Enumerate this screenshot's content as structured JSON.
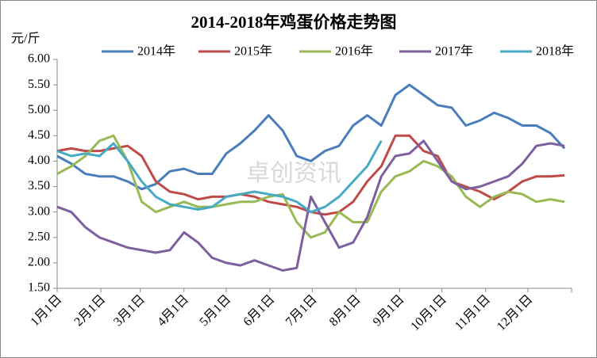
{
  "chart_data": {
    "type": "line",
    "title": "2014-2018年鸡蛋价格走势图",
    "y_label": "元/斤",
    "watermark": "卓创资讯",
    "x": [
      1,
      11,
      21,
      31,
      41,
      51,
      61,
      71,
      81,
      91,
      101,
      111,
      121,
      131,
      141,
      151,
      161,
      171,
      181,
      191,
      201,
      211,
      221,
      231,
      241,
      251,
      261,
      271,
      281,
      291,
      301,
      311,
      321,
      331,
      341,
      351,
      361
    ],
    "xlim": [
      1,
      366
    ],
    "xticks": [
      {
        "value": 1,
        "label": "1月1日"
      },
      {
        "value": 32,
        "label": "2月1日"
      },
      {
        "value": 60,
        "label": "3月1日"
      },
      {
        "value": 91,
        "label": "4月1日"
      },
      {
        "value": 121,
        "label": "5月1日"
      },
      {
        "value": 152,
        "label": "6月1日"
      },
      {
        "value": 182,
        "label": "7月1日"
      },
      {
        "value": 213,
        "label": "8月1日"
      },
      {
        "value": 244,
        "label": "9月1日"
      },
      {
        "value": 274,
        "label": "10月1日"
      },
      {
        "value": 305,
        "label": "11月1日"
      },
      {
        "value": 335,
        "label": "12月1日"
      }
    ],
    "ylim": [
      1.5,
      6.0
    ],
    "yticks": [
      {
        "value": 1.5,
        "label": "1.50"
      },
      {
        "value": 2.0,
        "label": "2.00"
      },
      {
        "value": 2.5,
        "label": "2.50"
      },
      {
        "value": 3.0,
        "label": "3.00"
      },
      {
        "value": 3.5,
        "label": "3.50"
      },
      {
        "value": 4.0,
        "label": "4.00"
      },
      {
        "value": 4.5,
        "label": "4.50"
      },
      {
        "value": 5.0,
        "label": "5.00"
      },
      {
        "value": 5.5,
        "label": "5.50"
      },
      {
        "value": 6.0,
        "label": "6.00"
      }
    ],
    "legend": "top",
    "series": [
      {
        "name": "2014年",
        "color": "#4a7ebb",
        "values": [
          4.1,
          3.95,
          3.75,
          3.7,
          3.7,
          3.6,
          3.45,
          3.55,
          3.8,
          3.85,
          3.75,
          3.75,
          4.15,
          4.35,
          4.6,
          4.9,
          4.6,
          4.1,
          4.0,
          4.2,
          4.3,
          4.7,
          4.9,
          4.7,
          5.3,
          5.5,
          5.3,
          5.1,
          5.05,
          4.7,
          4.8,
          4.95,
          4.85,
          4.7,
          4.7,
          4.55,
          4.25
        ]
      },
      {
        "name": "2015年",
        "color": "#be4b48",
        "values": [
          4.2,
          4.25,
          4.2,
          4.2,
          4.25,
          4.3,
          4.1,
          3.6,
          3.4,
          3.35,
          3.25,
          3.3,
          3.3,
          3.35,
          3.3,
          3.2,
          3.15,
          3.1,
          3.0,
          2.95,
          3.0,
          3.2,
          3.6,
          3.9,
          4.5,
          4.5,
          4.2,
          4.1,
          3.6,
          3.5,
          3.4,
          3.25,
          3.4,
          3.6,
          3.7,
          3.7,
          3.72
        ]
      },
      {
        "name": "2016年",
        "color": "#98b954",
        "values": [
          3.75,
          3.9,
          4.1,
          4.4,
          4.5,
          4.0,
          3.2,
          3.0,
          3.1,
          3.2,
          3.1,
          3.1,
          3.15,
          3.2,
          3.2,
          3.3,
          3.35,
          2.8,
          2.5,
          2.6,
          3.0,
          2.8,
          2.8,
          3.4,
          3.7,
          3.8,
          4.0,
          3.9,
          3.7,
          3.3,
          3.1,
          3.3,
          3.4,
          3.35,
          3.2,
          3.25,
          3.2
        ]
      },
      {
        "name": "2017年",
        "color": "#7d5fa0",
        "values": [
          3.1,
          3.0,
          2.7,
          2.5,
          2.4,
          2.3,
          2.25,
          2.2,
          2.25,
          2.6,
          2.4,
          2.1,
          2.0,
          1.95,
          2.05,
          1.95,
          1.85,
          1.9,
          3.3,
          2.8,
          2.3,
          2.4,
          2.9,
          3.7,
          4.1,
          4.15,
          4.4,
          4.0,
          3.6,
          3.45,
          3.5,
          3.6,
          3.7,
          3.95,
          4.3,
          4.35,
          4.3
        ]
      },
      {
        "name": "2018年",
        "color": "#46aac5",
        "values": [
          4.2,
          4.1,
          4.15,
          4.1,
          4.35,
          4.0,
          3.6,
          3.3,
          3.15,
          3.1,
          3.05,
          3.1,
          3.3,
          3.35,
          3.4,
          3.35,
          3.3,
          3.2,
          3.0,
          3.1,
          3.3,
          3.6,
          3.9,
          4.4,
          null,
          null,
          null,
          null,
          null,
          null,
          null,
          null,
          null,
          null,
          null,
          null,
          null
        ]
      }
    ]
  }
}
